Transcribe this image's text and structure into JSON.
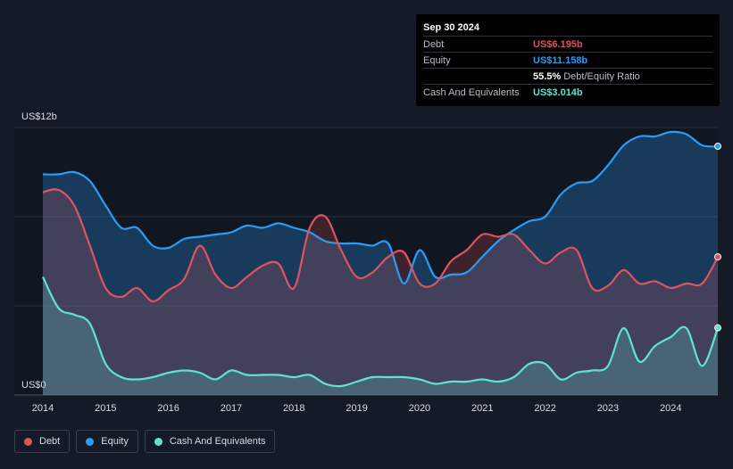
{
  "tooltip": {
    "date": "Sep 30 2024",
    "rows": [
      {
        "label": "Debt",
        "value": "US$6.195b",
        "color": "#e05260"
      },
      {
        "label": "Equity",
        "value": "US$11.158b",
        "color": "#2b9bf4"
      },
      {
        "label": "",
        "value": "55.5%",
        "suffix": "Debt/Equity Ratio",
        "color": "#ffffff"
      },
      {
        "label": "Cash And Equivalents",
        "value": "US$3.014b",
        "color": "#5ee3cf"
      }
    ]
  },
  "legend": [
    {
      "label": "Debt",
      "color": "#e05260"
    },
    {
      "label": "Equity",
      "color": "#2b9bf4"
    },
    {
      "label": "Cash And Equivalents",
      "color": "#5ee3cf"
    }
  ],
  "chart_data": {
    "type": "area",
    "y_axis_labels": [
      "US$12b",
      "US$0"
    ],
    "ylim": [
      0,
      12
    ],
    "xlim": [
      2014,
      2024.75
    ],
    "x_ticks": [
      "2014",
      "2015",
      "2016",
      "2017",
      "2018",
      "2019",
      "2020",
      "2021",
      "2022",
      "2023",
      "2024"
    ],
    "grid": true,
    "series": [
      {
        "name": "Equity",
        "color": "#2b9bf4",
        "x": [
          2014,
          2014.25,
          2014.5,
          2014.75,
          2015,
          2015.25,
          2015.5,
          2015.75,
          2016,
          2016.25,
          2016.5,
          2016.75,
          2017,
          2017.25,
          2017.5,
          2017.75,
          2018,
          2018.25,
          2018.5,
          2018.75,
          2019,
          2019.25,
          2019.5,
          2019.75,
          2020,
          2020.25,
          2020.5,
          2020.75,
          2021,
          2021.25,
          2021.5,
          2021.75,
          2022,
          2022.25,
          2022.5,
          2022.75,
          2023,
          2023.25,
          2023.5,
          2023.75,
          2024,
          2024.25,
          2024.5,
          2024.75
        ],
        "values": [
          9.9,
          9.9,
          10.0,
          9.6,
          8.5,
          7.5,
          7.5,
          6.7,
          6.6,
          7.0,
          7.1,
          7.2,
          7.3,
          7.6,
          7.5,
          7.7,
          7.5,
          7.3,
          6.9,
          6.8,
          6.8,
          6.7,
          6.8,
          5.0,
          6.5,
          5.3,
          5.4,
          5.5,
          6.2,
          6.9,
          7.4,
          7.8,
          8.0,
          9.0,
          9.5,
          9.6,
          10.3,
          11.2,
          11.6,
          11.6,
          11.8,
          11.7,
          11.2,
          11.158
        ]
      },
      {
        "name": "Debt",
        "color": "#e05260",
        "x": [
          2014,
          2014.25,
          2014.5,
          2014.75,
          2015,
          2015.25,
          2015.5,
          2015.75,
          2016,
          2016.25,
          2016.5,
          2016.75,
          2017,
          2017.25,
          2017.5,
          2017.75,
          2018,
          2018.25,
          2018.5,
          2018.75,
          2019,
          2019.25,
          2019.5,
          2019.75,
          2020,
          2020.25,
          2020.5,
          2020.75,
          2021,
          2021.25,
          2021.5,
          2021.75,
          2022,
          2022.25,
          2022.5,
          2022.75,
          2023,
          2023.25,
          2023.5,
          2023.75,
          2024,
          2024.25,
          2024.5,
          2024.75
        ],
        "values": [
          9.1,
          9.2,
          8.5,
          6.7,
          4.8,
          4.4,
          4.8,
          4.2,
          4.7,
          5.2,
          6.7,
          5.4,
          4.8,
          5.3,
          5.8,
          5.9,
          4.8,
          7.5,
          8.0,
          6.5,
          5.3,
          5.5,
          6.2,
          6.4,
          5.0,
          5.0,
          6.0,
          6.5,
          7.2,
          7.1,
          7.2,
          6.5,
          5.9,
          6.4,
          6.5,
          4.8,
          4.9,
          5.6,
          5.0,
          5.1,
          4.8,
          5.0,
          5.0,
          6.195
        ]
      },
      {
        "name": "Cash And Equivalents",
        "color": "#5ee3cf",
        "x": [
          2014,
          2014.25,
          2014.5,
          2014.75,
          2015,
          2015.25,
          2015.5,
          2015.75,
          2016,
          2016.25,
          2016.5,
          2016.75,
          2017,
          2017.25,
          2017.5,
          2017.75,
          2018,
          2018.25,
          2018.5,
          2018.75,
          2019,
          2019.25,
          2019.5,
          2019.75,
          2020,
          2020.25,
          2020.5,
          2020.75,
          2021,
          2021.25,
          2021.5,
          2021.75,
          2022,
          2022.25,
          2022.5,
          2022.75,
          2023,
          2023.25,
          2023.5,
          2023.75,
          2024,
          2024.25,
          2024.5,
          2024.75
        ],
        "values": [
          5.3,
          3.9,
          3.6,
          3.2,
          1.4,
          0.8,
          0.7,
          0.8,
          1.0,
          1.1,
          1.0,
          0.7,
          1.1,
          0.9,
          0.9,
          0.9,
          0.8,
          0.9,
          0.5,
          0.4,
          0.6,
          0.8,
          0.8,
          0.8,
          0.7,
          0.5,
          0.6,
          0.6,
          0.7,
          0.6,
          0.8,
          1.4,
          1.4,
          0.7,
          1.0,
          1.1,
          1.3,
          3.0,
          1.5,
          2.2,
          2.6,
          3.0,
          1.3,
          3.014
        ]
      }
    ]
  }
}
